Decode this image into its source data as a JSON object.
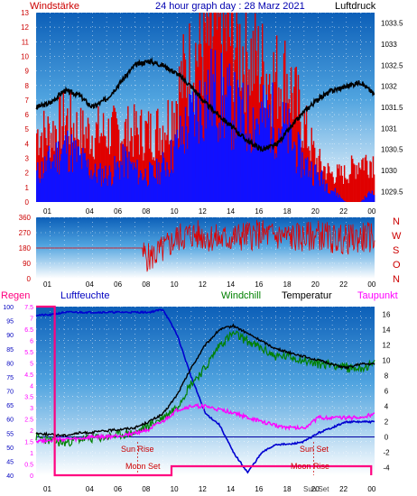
{
  "header": {
    "left_label": "Windstärke",
    "title": "24 hour graph day : 28 Marz 2021",
    "right_label": "Luftdruck"
  },
  "colors": {
    "wind": "#e00000",
    "gust": "#1010ff",
    "pressure": "#000000",
    "direction": "#e00000",
    "humidity": "#0000d0",
    "temperature": "#000000",
    "windchill": "#008000",
    "dewpoint": "#ff00ff",
    "rain": "#ff0080",
    "zero_line": "#0000a0",
    "label_blue": "#0000c0",
    "label_red": "#cc0000",
    "label_magenta": "#ff00ff"
  },
  "bottom_legend": {
    "regen": "Regen",
    "luftfeuchte": "Luftfeuchte",
    "windchill": "Windchill",
    "temperatur": "Temperatur",
    "taupunkt": "Taupunkt"
  },
  "annotations": {
    "sun_rise": "Sun Rise",
    "sun_set": "Sun Set",
    "moon_set": "Moon Set",
    "moon_rise": "Moon Rise",
    "sun_set_axis": "Sun Set"
  },
  "compass": [
    "N",
    "W",
    "S",
    "O",
    "N"
  ],
  "chart_data": [
    {
      "type": "bar",
      "panel": "wind",
      "title": "24 hour graph day : 28 Marz 2021",
      "x_ticks": [
        "01",
        "04",
        "06",
        "08",
        "10",
        "12",
        "14",
        "16",
        "18",
        "20",
        "22",
        "00"
      ],
      "y_left_label": "Windstärke",
      "y_left_ticks": [
        "0",
        "1",
        "2",
        "3",
        "4",
        "5",
        "6",
        "7",
        "8",
        "9",
        "10",
        "11",
        "12",
        "13"
      ],
      "y_left_range": [
        0,
        13
      ],
      "y_right_label": "Luftdruck",
      "y_right_ticks": [
        "1029.5",
        "1030",
        "1030.5",
        "1031",
        "1031.5",
        "1032",
        "1032.5",
        "1033",
        "1033.5"
      ],
      "y_right_range": [
        1029.25,
        1033.75
      ],
      "wind_hourly": [
        2,
        3,
        4,
        3,
        2,
        2,
        3,
        2,
        2,
        3,
        5,
        7,
        8,
        7,
        6,
        6,
        6,
        5,
        3,
        2,
        1,
        0,
        0,
        1
      ],
      "gust_hourly": [
        5,
        5,
        6,
        5,
        5,
        5,
        5,
        5,
        5,
        6,
        9,
        11,
        12,
        12,
        11,
        10,
        9,
        9,
        6,
        3,
        2,
        2,
        3,
        3
      ],
      "pressure_hourly": [
        1031.5,
        1031.6,
        1031.9,
        1031.8,
        1031.5,
        1031.7,
        1032.1,
        1032.5,
        1032.6,
        1032.5,
        1032.3,
        1032.0,
        1031.6,
        1031.3,
        1031.0,
        1030.7,
        1030.5,
        1030.6,
        1031.0,
        1031.4,
        1031.7,
        1031.9,
        1032.0,
        1032.1,
        1031.8
      ]
    },
    {
      "type": "line",
      "panel": "wind_direction",
      "y_ticks": [
        "0",
        "90",
        "180",
        "270",
        "360"
      ],
      "y_range": [
        0,
        360
      ],
      "hourly_direction": [
        180,
        180,
        180,
        180,
        180,
        180,
        180,
        180,
        120,
        170,
        240,
        260,
        250,
        230,
        240,
        255,
        260,
        250,
        245,
        240,
        260,
        235,
        230,
        240,
        245
      ]
    },
    {
      "type": "line",
      "panel": "temperature_humidity",
      "y_rain_ticks": [
        "0",
        "0.5",
        "1",
        "1.5",
        "2",
        "2.5",
        "3",
        "3.5",
        "4",
        "4.5",
        "5",
        "5.5",
        "6",
        "6.5",
        "7",
        "7.5"
      ],
      "y_rain_range": [
        0,
        7.5
      ],
      "y_humidity_ticks": [
        "40",
        "45",
        "50",
        "55",
        "60",
        "65",
        "70",
        "75",
        "80",
        "85",
        "90",
        "95",
        "100"
      ],
      "y_humidity_range": [
        40,
        100
      ],
      "y_temp_ticks": [
        "-4",
        "-2",
        "0",
        "2",
        "4",
        "6",
        "8",
        "10",
        "12",
        "14",
        "16"
      ],
      "y_temp_range": [
        -5,
        17
      ],
      "humidity_hourly": [
        97,
        97,
        98,
        98,
        98,
        98,
        98,
        98,
        98,
        99,
        90,
        75,
        62,
        58,
        48,
        41,
        48,
        51,
        51,
        52,
        55,
        57,
        59,
        59,
        59
      ],
      "temperature_hourly": [
        0.5,
        0.3,
        0.2,
        0.5,
        0.6,
        0.8,
        1.0,
        1.2,
        2.0,
        3.0,
        5.5,
        9.0,
        12.0,
        14.0,
        14.5,
        13.5,
        12.5,
        11.5,
        11.0,
        10.5,
        10.0,
        9.5,
        9.0,
        9.5,
        9.5
      ],
      "windchill_hourly": [
        0.0,
        -0.5,
        -0.8,
        -0.3,
        -0.2,
        0.0,
        0.3,
        0.5,
        1.5,
        2.5,
        4.0,
        7.0,
        9.0,
        12.0,
        13.5,
        12.5,
        11.5,
        10.5,
        10.5,
        10.0,
        9.5,
        9.5,
        9.0,
        9.0,
        9.5
      ],
      "dewpoint_hourly": [
        -0.5,
        -0.4,
        -0.3,
        -0.3,
        0.0,
        0.0,
        0.2,
        0.5,
        1.0,
        2.0,
        3.5,
        4.0,
        4.0,
        3.5,
        3.2,
        2.5,
        2.0,
        1.5,
        1.2,
        1.2,
        2.5,
        2.5,
        2.5,
        2.5,
        3.0
      ],
      "rain_hourly": [
        7.5,
        0,
        0,
        0,
        0,
        0,
        0,
        0,
        0,
        0,
        0.4,
        0.4,
        0.4,
        0.4,
        0.4,
        0.4,
        0.4,
        0.4,
        0.4,
        0.4,
        0.4,
        0.4,
        0.4,
        0.4,
        0
      ]
    }
  ]
}
